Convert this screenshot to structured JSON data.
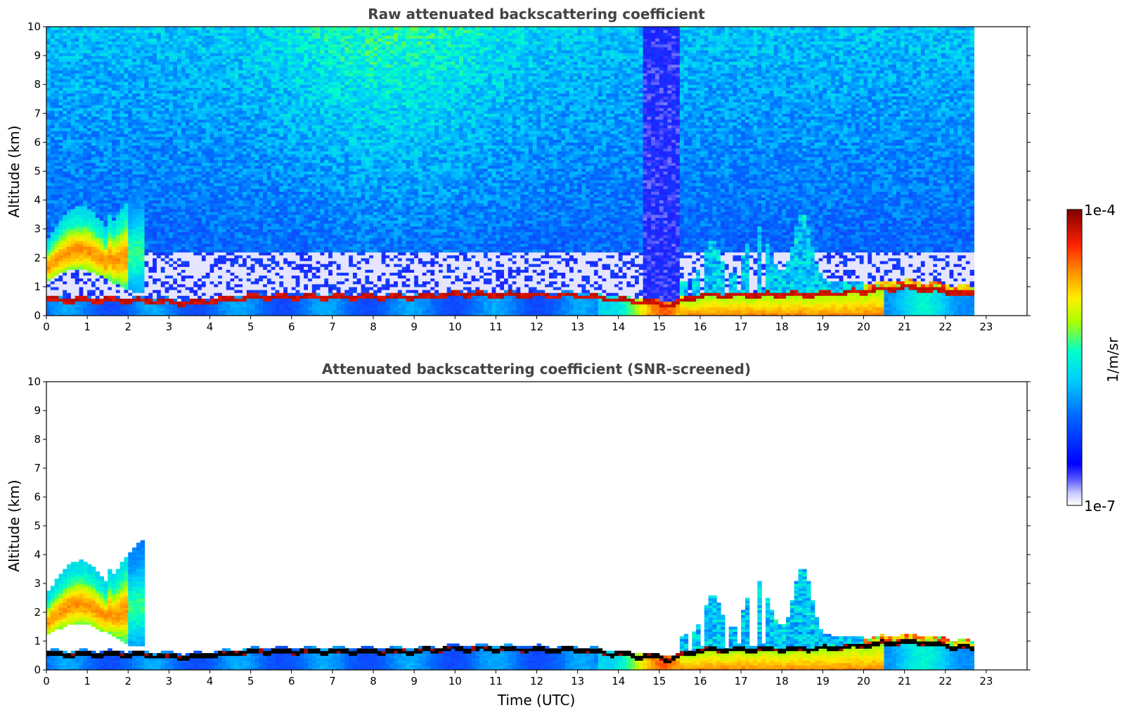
{
  "chart_data": [
    {
      "type": "heatmap",
      "title": "Raw attenuated backscattering coefficient",
      "xlabel": "",
      "ylabel": "Altitude (km)",
      "xlim": [
        0,
        24
      ],
      "ylim": [
        0,
        10
      ],
      "x_ticks": [
        "0",
        "1",
        "2",
        "3",
        "4",
        "5",
        "6",
        "7",
        "8",
        "9",
        "10",
        "11",
        "12",
        "13",
        "14",
        "15",
        "16",
        "17",
        "18",
        "19",
        "20",
        "21",
        "22",
        "23"
      ],
      "y_ticks": [
        "0",
        "1",
        "2",
        "3",
        "4",
        "5",
        "6",
        "7",
        "8",
        "9",
        "10"
      ],
      "data_extent_hours": [
        0,
        22.7
      ],
      "screened": false,
      "colorscale": "jet",
      "boundary_layer_top_km": [
        [
          0,
          0.55
        ],
        [
          2,
          0.55
        ],
        [
          3.5,
          0.45
        ],
        [
          5,
          0.65
        ],
        [
          9,
          0.65
        ],
        [
          10,
          0.75
        ],
        [
          13,
          0.7
        ],
        [
          14,
          0.55
        ],
        [
          15.3,
          0.4
        ],
        [
          16,
          0.7
        ],
        [
          19,
          0.75
        ],
        [
          20,
          0.85
        ],
        [
          21,
          1.0
        ],
        [
          22.7,
          0.75
        ]
      ],
      "notes": "Aerosol/cloud layer 1-4 km during 0-2.4 UTC; low-SNR noisy column 14.6-15.5 UTC; clouds up to ~3.5 km 15.5-20 UTC"
    },
    {
      "type": "heatmap",
      "title": "Attenuated backscattering coefficient (SNR-screened)",
      "xlabel": "Time (UTC)",
      "ylabel": "Altitude (km)",
      "xlim": [
        0,
        24
      ],
      "ylim": [
        0,
        10
      ],
      "x_ticks": [
        "0",
        "1",
        "2",
        "3",
        "4",
        "5",
        "6",
        "7",
        "8",
        "9",
        "10",
        "11",
        "12",
        "13",
        "14",
        "15",
        "16",
        "17",
        "18",
        "19",
        "20",
        "21",
        "22",
        "23"
      ],
      "y_ticks": [
        "0",
        "1",
        "2",
        "3",
        "4",
        "5",
        "6",
        "7",
        "8",
        "9",
        "10"
      ],
      "data_extent_hours": [
        0,
        22.7
      ],
      "screened": true,
      "colorscale": "jet"
    }
  ],
  "colorbar": {
    "max_label": "1e-4",
    "min_label": "1e-7",
    "label": "1/m/sr",
    "scale": "log",
    "colors": [
      "#ffffff",
      "#0000ff",
      "#00aaff",
      "#00ffcc",
      "#aaff00",
      "#ffee00",
      "#ff8800",
      "#ff0000",
      "#800000"
    ]
  }
}
